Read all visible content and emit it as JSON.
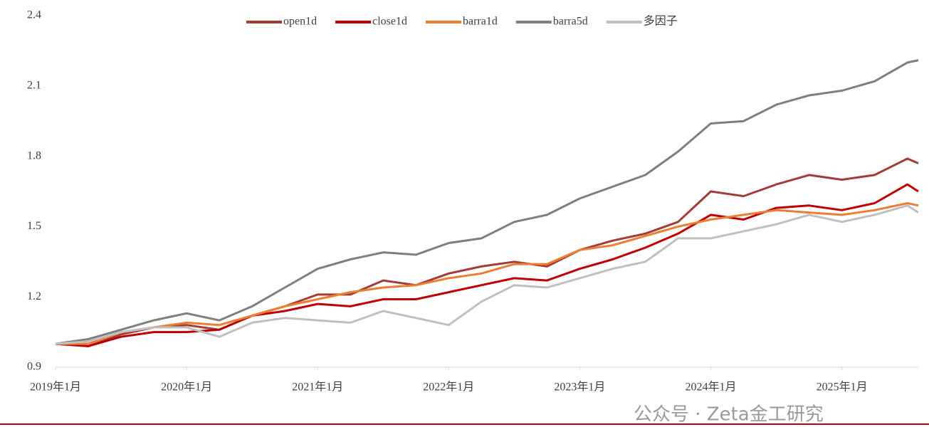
{
  "chart_data": {
    "type": "line",
    "x": [
      "2019-01",
      "2019-04",
      "2019-07",
      "2019-10",
      "2020-01",
      "2020-04",
      "2020-07",
      "2020-10",
      "2021-01",
      "2021-04",
      "2021-07",
      "2021-10",
      "2022-01",
      "2022-04",
      "2022-07",
      "2022-10",
      "2023-01",
      "2023-04",
      "2023-07",
      "2023-10",
      "2024-01",
      "2024-04",
      "2024-07",
      "2024-10",
      "2025-01",
      "2025-04",
      "2025-07",
      "2025-08"
    ],
    "xlim": [
      "2019-01",
      "2025-08"
    ],
    "xticks": [
      {
        "value": "2019-01",
        "label": "2019年1月"
      },
      {
        "value": "2020-01",
        "label": "2020年1月"
      },
      {
        "value": "2021-01",
        "label": "2021年1月"
      },
      {
        "value": "2022-01",
        "label": "2022年1月"
      },
      {
        "value": "2023-01",
        "label": "2023年1月"
      },
      {
        "value": "2024-01",
        "label": "2024年1月"
      },
      {
        "value": "2025-01",
        "label": "2025年1月"
      }
    ],
    "ylim": [
      0.9,
      2.4
    ],
    "yticks": [
      0.9,
      1.2,
      1.5,
      1.8,
      2.1,
      2.4
    ],
    "grid": false,
    "legend": "top",
    "series": [
      {
        "name": "open1d",
        "color": "#a33b36",
        "values": [
          1.0,
          0.99,
          1.04,
          1.07,
          1.08,
          1.06,
          1.12,
          1.16,
          1.21,
          1.21,
          1.27,
          1.25,
          1.3,
          1.33,
          1.35,
          1.33,
          1.4,
          1.44,
          1.47,
          1.52,
          1.65,
          1.63,
          1.68,
          1.72,
          1.7,
          1.72,
          1.79,
          1.77
        ]
      },
      {
        "name": "close1d",
        "color": "#c00000",
        "values": [
          1.0,
          0.99,
          1.03,
          1.05,
          1.05,
          1.06,
          1.12,
          1.14,
          1.17,
          1.16,
          1.19,
          1.19,
          1.22,
          1.25,
          1.28,
          1.27,
          1.32,
          1.36,
          1.41,
          1.47,
          1.55,
          1.53,
          1.58,
          1.59,
          1.57,
          1.6,
          1.68,
          1.65
        ]
      },
      {
        "name": "barra1d",
        "color": "#ed7d31",
        "values": [
          1.0,
          1.0,
          1.05,
          1.07,
          1.09,
          1.08,
          1.12,
          1.16,
          1.19,
          1.22,
          1.24,
          1.25,
          1.28,
          1.3,
          1.34,
          1.34,
          1.4,
          1.42,
          1.46,
          1.5,
          1.53,
          1.55,
          1.57,
          1.56,
          1.55,
          1.57,
          1.6,
          1.59
        ]
      },
      {
        "name": "barra5d",
        "color": "#7f7f7f",
        "values": [
          1.0,
          1.02,
          1.06,
          1.1,
          1.13,
          1.1,
          1.16,
          1.24,
          1.32,
          1.36,
          1.39,
          1.38,
          1.43,
          1.45,
          1.52,
          1.55,
          1.62,
          1.67,
          1.72,
          1.82,
          1.94,
          1.95,
          2.02,
          2.06,
          2.08,
          2.12,
          2.2,
          2.21
        ]
      },
      {
        "name": "多因子",
        "color": "#c0c0c0",
        "values": [
          1.0,
          1.01,
          1.05,
          1.07,
          1.07,
          1.03,
          1.09,
          1.11,
          1.1,
          1.09,
          1.14,
          1.11,
          1.08,
          1.18,
          1.25,
          1.24,
          1.28,
          1.32,
          1.35,
          1.45,
          1.45,
          1.48,
          1.51,
          1.55,
          1.52,
          1.55,
          1.59,
          1.56
        ]
      }
    ],
    "watermark": "公众号 · Zeta金工研究"
  }
}
